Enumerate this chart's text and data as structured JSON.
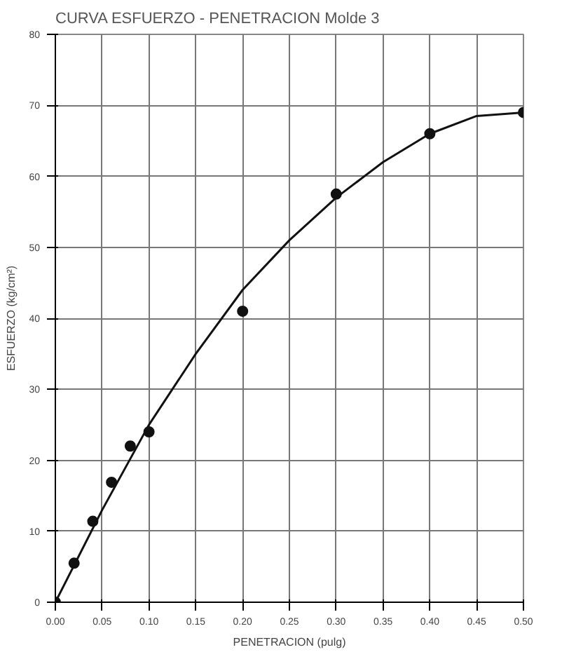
{
  "chart_data": {
    "type": "scatter",
    "title": "CURVA ESFUERZO - PENETRACION  Molde 3",
    "xlabel": "PENETRACION (pulg)",
    "ylabel": "ESFUERZO (kg/cm²)",
    "series": [
      {
        "color": "#111111",
        "marker": "circle",
        "x": [
          0.0,
          0.02,
          0.04,
          0.06,
          0.08,
          0.1,
          0.2,
          0.3,
          0.4,
          0.5
        ],
        "values": [
          0,
          5.5,
          11.4,
          16.9,
          22,
          24,
          41,
          57.5,
          66,
          69
        ]
      },
      {
        "type": "line",
        "color": "#111111",
        "marker": "none",
        "x": [
          0.0,
          0.05,
          0.1,
          0.15,
          0.2,
          0.25,
          0.3,
          0.35,
          0.4,
          0.45,
          0.5
        ],
        "values": [
          0,
          13,
          25,
          35,
          44,
          51,
          57,
          62,
          66,
          68.5,
          69
        ]
      }
    ],
    "xlim": [
      0,
      0.5
    ],
    "xticks": [
      {
        "value": 0,
        "label": "0.00"
      },
      {
        "value": 0.05,
        "label": "0.05"
      },
      {
        "value": 0.1,
        "label": "0.10"
      },
      {
        "value": 0.15,
        "label": "0.15"
      },
      {
        "value": 0.2,
        "label": "0.20"
      },
      {
        "value": 0.25,
        "label": "0.25"
      },
      {
        "value": 0.3,
        "label": "0.30"
      },
      {
        "value": 0.35,
        "label": "0.35"
      },
      {
        "value": 0.4,
        "label": "0.40"
      },
      {
        "value": 0.45,
        "label": "0.45"
      },
      {
        "value": 0.5,
        "label": "0.50"
      }
    ],
    "ylim": [
      0,
      80
    ],
    "yticks": [
      0,
      10,
      20,
      30,
      40,
      50,
      60,
      70,
      80
    ],
    "grid": true
  }
}
